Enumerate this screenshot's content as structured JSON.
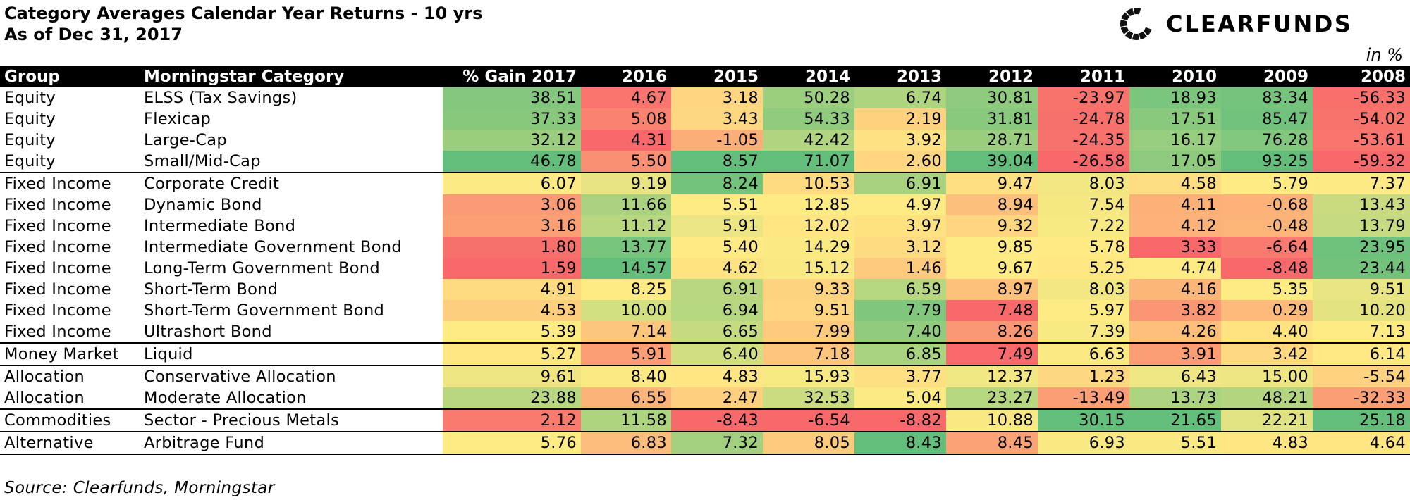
{
  "title": "Category Averages Calendar Year Returns - 10 yrs",
  "subtitle": "As of Dec 31, 2017",
  "brand": "CLEARFUNDS",
  "unit_note": "in %",
  "source": "Source: Clearfunds, Morningstar",
  "chart_data": {
    "type": "table",
    "columns": [
      "Group",
      "Morningstar Category",
      "% Gain 2017",
      "2016",
      "2015",
      "2014",
      "2013",
      "2012",
      "2011",
      "2010",
      "2009",
      "2008"
    ],
    "rows": [
      {
        "group": "Equity",
        "category": "ELSS (Tax Savings)",
        "values": [
          "38.51",
          "4.67",
          "3.18",
          "50.28",
          "6.74",
          "30.81",
          "-23.97",
          "18.93",
          "83.34",
          "-56.33"
        ]
      },
      {
        "group": "Equity",
        "category": "Flexicap",
        "values": [
          "37.33",
          "5.08",
          "3.43",
          "54.33",
          "2.19",
          "31.81",
          "-24.78",
          "17.51",
          "85.47",
          "-54.02"
        ]
      },
      {
        "group": "Equity",
        "category": "Large-Cap",
        "values": [
          "32.12",
          "4.31",
          "-1.05",
          "42.42",
          "3.92",
          "28.71",
          "-24.35",
          "16.17",
          "76.28",
          "-53.61"
        ]
      },
      {
        "group": "Equity",
        "category": "Small/Mid-Cap",
        "values": [
          "46.78",
          "5.50",
          "8.57",
          "71.07",
          "2.60",
          "39.04",
          "-26.58",
          "17.05",
          "93.25",
          "-59.32"
        ]
      },
      {
        "group": "Fixed Income",
        "category": "Corporate Credit",
        "values": [
          "6.07",
          "9.19",
          "8.24",
          "10.53",
          "6.91",
          "9.47",
          "8.03",
          "4.58",
          "5.79",
          "7.37"
        ]
      },
      {
        "group": "Fixed Income",
        "category": "Dynamic Bond",
        "values": [
          "3.06",
          "11.66",
          "5.51",
          "12.85",
          "4.97",
          "8.94",
          "7.54",
          "4.11",
          "-0.68",
          "13.43"
        ]
      },
      {
        "group": "Fixed Income",
        "category": "Intermediate Bond",
        "values": [
          "3.16",
          "11.12",
          "5.91",
          "12.02",
          "3.97",
          "9.32",
          "7.22",
          "4.12",
          "-0.48",
          "13.79"
        ]
      },
      {
        "group": "Fixed Income",
        "category": "Intermediate Government Bond",
        "values": [
          "1.80",
          "13.77",
          "5.40",
          "14.29",
          "3.12",
          "9.85",
          "5.78",
          "3.33",
          "-6.64",
          "23.95"
        ]
      },
      {
        "group": "Fixed Income",
        "category": "Long-Term Government Bond",
        "values": [
          "1.59",
          "14.57",
          "4.62",
          "15.12",
          "1.46",
          "9.67",
          "5.25",
          "4.74",
          "-8.48",
          "23.44"
        ]
      },
      {
        "group": "Fixed Income",
        "category": "Short-Term Bond",
        "values": [
          "4.91",
          "8.25",
          "6.91",
          "9.33",
          "6.59",
          "8.97",
          "8.03",
          "4.16",
          "5.35",
          "9.51"
        ]
      },
      {
        "group": "Fixed Income",
        "category": "Short-Term Government Bond",
        "values": [
          "4.53",
          "10.00",
          "6.94",
          "9.51",
          "7.79",
          "7.48",
          "5.97",
          "3.82",
          "0.29",
          "10.20"
        ]
      },
      {
        "group": "Fixed Income",
        "category": "Ultrashort Bond",
        "values": [
          "5.39",
          "7.14",
          "6.65",
          "7.99",
          "7.40",
          "8.26",
          "7.39",
          "4.26",
          "4.40",
          "7.13"
        ]
      },
      {
        "group": "Money Market",
        "category": "Liquid",
        "values": [
          "5.27",
          "5.91",
          "6.40",
          "7.18",
          "6.85",
          "7.49",
          "6.63",
          "3.91",
          "3.42",
          "6.14"
        ]
      },
      {
        "group": "Allocation",
        "category": "Conservative Allocation",
        "values": [
          "9.61",
          "8.40",
          "4.83",
          "15.93",
          "3.77",
          "12.37",
          "1.23",
          "6.43",
          "15.00",
          "-5.54"
        ]
      },
      {
        "group": "Allocation",
        "category": "Moderate Allocation",
        "values": [
          "23.88",
          "6.55",
          "2.47",
          "32.53",
          "5.04",
          "23.27",
          "-13.49",
          "13.73",
          "48.21",
          "-32.33"
        ]
      },
      {
        "group": "Commodities",
        "category": "Sector - Precious Metals",
        "values": [
          "2.12",
          "11.58",
          "-8.43",
          "-6.54",
          "-8.82",
          "10.88",
          "30.15",
          "21.65",
          "22.21",
          "25.18"
        ]
      },
      {
        "group": "Alternative",
        "category": "Arbitrage Fund",
        "values": [
          "5.76",
          "6.83",
          "7.32",
          "8.05",
          "8.43",
          "8.45",
          "6.93",
          "5.51",
          "4.83",
          "4.64"
        ]
      }
    ],
    "group_separators_before_rows": [
      4,
      12,
      13,
      15,
      16
    ],
    "color_scale": {
      "low": "#f8696b",
      "mid": "#ffeb84",
      "high": "#63be7b",
      "direction": "per column: red = lowest, yellow = middle, green = highest"
    }
  }
}
